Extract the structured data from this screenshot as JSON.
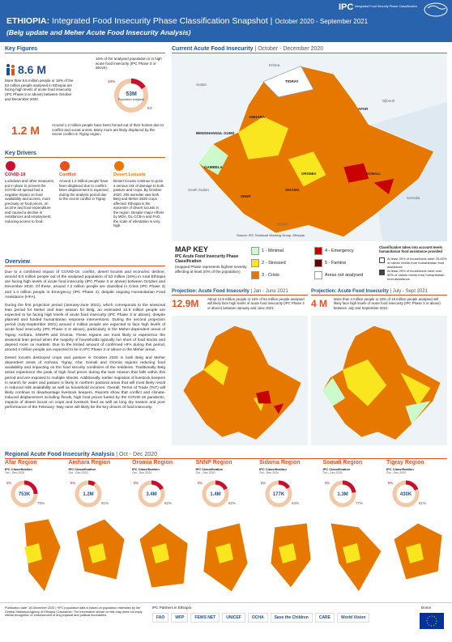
{
  "header": {
    "title": "ETHIOPIA:",
    "title_rest": "Integrated Food Insecurity Phase Classification Snapshot",
    "period": "October 2020 - September 2021",
    "subtitle": "(Belg update and Meher Acute Food Insecurity Analysis)",
    "logo": "IPC",
    "logo_text": "Integrated Food Security Phase Classification"
  },
  "key_figures": {
    "heading": "Key Figures",
    "big": "8.6 M",
    "big_text": "More than 8.6 million people or 16% of the 53 million people analysed in Ethiopia are facing high levels of acute food insecurity (IPC Phase 3 or above) between October and December 2020.",
    "donut_note": "16% of the analysed population is in high acute food insecurity (IPC Phase 3 or above).",
    "donut_center": "53M",
    "donut_caption": "Population analysed",
    "donut_share": {
      "value": 16,
      "label": "16%"
    },
    "donut_rest": "84%",
    "displaced": "1.2 M",
    "displaced_text": "Around 1.2 million people have been forced out of their homes due to conflict and social unrest. Many more are likely displaced by the recent conflict in Tigray region."
  },
  "key_drivers": {
    "heading": "Key Drivers",
    "items": [
      {
        "title": "COVID-19",
        "text": "Lockdown and other measures put in place to prevent the COVID-19 spread had a negative impact on food availability and access, more precisely on food prices, on income and food expenditure and caused a decline in remittances and employment, reducing access to food."
      },
      {
        "title": "Conflict",
        "text": "Around 1.2 million people have been displaced due to conflict. More displacement is expected during the analysis period due to the recent conflict in Tigray."
      },
      {
        "title": "Desert Locusts",
        "text": "Desert locusts continue to pose a serious risk of damage to both pasture and crops. By October 2020, 205 woredas saw both Belg and Meher 2020 crops affected. Ethiopia is the epicenter of desert locusts in the region. Despite major efforts by MOA, DL-CCB-A and FAO, the scale of infestation is very high."
      }
    ]
  },
  "overview": {
    "heading": "Overview",
    "paragraphs": [
      "Due to a combined impact of COVID-19, conflict, desert locusts and economic decline, around 8.6 million people out of the analysed population of 53 million (16%) in rural Ethiopia are facing high levels of acute food insecurity (IPC Phase 3 or above) between October and December 2020. Of these, around 7.2 million people are classified in Crisis (IPC Phase 3) and 1.4 million people in Emergency (IPC Phase 4), despite ongoing Humanitarian Food Assistance (HFA).",
      "During the first projection period (January-June 2021), which corresponds to the seasonal lean period for Meher and lean season for Belg, an estimated 12.9 million people are expected to be facing high levels of acute food insecurity (IPC Phase 3 or above), despite planned and funded humanitarian response interventions. During the second projection period (July-September 2021) around 4 million people are expected to face high levels of acute food insecurity (IPC Phase 3 or above), particularly in the Meher-dependent areas of Tigray, Amhara, SNNPR and Oromia. These regions are most likely to experience the seasonal lean period when the majority of households typically run short of food stocks and depend more on markets. Due to the limited amount of confirmed HFA during this period, around 4 million people are expected to be in IPC Phase 3 or above in the Meher areas.",
      "Desert locusts destroyed crops and pasture in October 2020 in both Belg and Meher dependent areas of Amhara, Tigray, Afar, Somali and Oromia regions reducing food availability and impacting on the food security conditions of the residents. Traditionally Belg areas experience the peak of high food prices during the lean season that falls within this period and are exposed to multiple shocks. Additionally, earlier migration of livestock keepers in search for water and pasture is likely in northern pastoral areas that will most likely result in reduced milk availability as well as household incomes. Overall, Terms of Trade (ToT) will likely continue to disadvantage livestock keepers. Reports show that conflict and climate-induced displacement including floods, high food prices fueled by the COVID-19 pandemic, impacts of desert locust on crops and livestock feed as well as long dry season and poor performance of the February- May rains will likely be the key drivers of food insecurity."
    ]
  },
  "current_map": {
    "heading": "Current Acute Food Insecurity",
    "period": "October - December 2020",
    "labels": [
      "Eritrea",
      "Sudan",
      "TIGRAY",
      "AFAR",
      "AMHARA",
      "Djibouti",
      "BENISHANGUL GUMZ",
      "GAMBELA",
      "OROMIA",
      "SOMALI",
      "South Sudan",
      "Kenya",
      "Somalia",
      "SNNP",
      "SIDAMA"
    ],
    "source": "Source: IPC Technical Working Group, Ethiopia"
  },
  "map_key": {
    "heading": "MAP KEY",
    "subtitle": "IPC Acute Food Insecurity Phase Classification",
    "note": "(mapped Phase represents highest severity affecting at least 20% of the population)",
    "phases": [
      {
        "label": "1 - Minimal",
        "color": "#cdfacd"
      },
      {
        "label": "2 - Stressed",
        "color": "#fae61e"
      },
      {
        "label": "3 - Crisis",
        "color": "#e67800"
      },
      {
        "label": "4 - Emergency",
        "color": "#c80000"
      },
      {
        "label": "5 - Famine",
        "color": "#640000"
      },
      {
        "label": "Areas not analysed",
        "color": "#ffffff"
      }
    ],
    "hfa_title": "Classification takes into account levels humanitarian food assistance provided",
    "hfa": [
      "At least 25% of households meet 25-50% of caloric needs from humanitarian food assistance",
      "At least 25% of households meet over 50% of caloric needs from humanitarian food assistance"
    ]
  },
  "projections": [
    {
      "heading": "Projection: Acute Food Insecurity",
      "period": "Jan - June 2021",
      "figure": "12.9M",
      "text": "About 12.9 million people or 24% of 54 million people analysed will likely face high levels of acute food insecurity (IPC Phase 3 or above) between January and June 2021."
    },
    {
      "heading": "Projection: Acute Food Insecurity",
      "period": "July - Sept 2021",
      "figure": "4 M",
      "text": "More than 4 million people or 23% of 18 million people analysed will likely face high levels of acute food insecurity (IPC Phase 3 or above) between July and September 2021."
    }
  ],
  "regional": {
    "heading": "Regional Acute Food Insecurity Analysis",
    "period": "Oct - Dec 2020",
    "sub1": "IPC Classification",
    "sub2": "Oct - Dec 2020",
    "regions": [
      {
        "name": "Afar Region",
        "figure": "753K",
        "share": {
          "value": 25,
          "label": "25%"
        },
        "rest": "75%"
      },
      {
        "name": "Amhara Region",
        "figure": "1.2M",
        "share": {
          "value": 9,
          "label": "9%"
        },
        "rest": "91%"
      },
      {
        "name": "Oromia Region",
        "figure": "3.4M",
        "share": {
          "value": 18,
          "label": "18%"
        },
        "rest": "82%"
      },
      {
        "name": "SNNP Region",
        "figure": "1.4M",
        "share": {
          "value": 18,
          "label": "18%"
        },
        "rest": "82%"
      },
      {
        "name": "Sidama Region",
        "figure": "177K",
        "share": {
          "value": 16,
          "label": "16%"
        },
        "rest": "84%"
      },
      {
        "name": "Somali Region",
        "figure": "1.3M",
        "share": {
          "value": 23,
          "label": "23%"
        },
        "rest": "77%"
      },
      {
        "name": "Tigray Region",
        "figure": "430K",
        "share": {
          "value": 19,
          "label": "19%"
        },
        "rest": "81%"
      }
    ]
  },
  "footer": {
    "publication": "Publication date: 18 December 2020 | *IPC population data is based on population estimates by the Central Statistical Agency of Ethiopia | Disclaimer: The information shown on this map does not imply official recognition or endorsement of any physical and political boundaries.",
    "partners": "IPC Partners in Ethiopia",
    "partner_names": [
      "FAO",
      "WFP",
      "FEWS NET",
      "UNICEF",
      "OCHA",
      "Save the Children",
      "CARE",
      "World Vision"
    ],
    "donor": "Donor"
  }
}
